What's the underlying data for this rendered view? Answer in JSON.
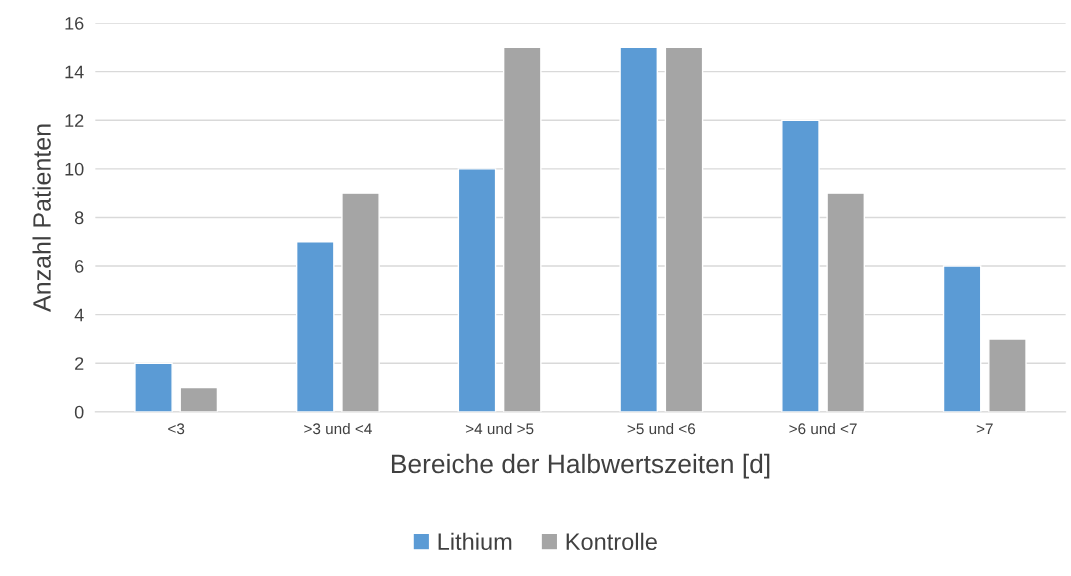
{
  "chart_data": {
    "type": "bar",
    "xlabel": "Bereiche der Halbwertszeiten [d]",
    "ylabel": "Anzahl Patienten",
    "categories": [
      "<3",
      ">3 und <4",
      ">4 und >5",
      ">5 und <6",
      ">6 und <7",
      ">7"
    ],
    "series": [
      {
        "name": "Lithium",
        "color": "#5b9bd5",
        "values": [
          2,
          7,
          10,
          15,
          12,
          6
        ]
      },
      {
        "name": "Kontrolle",
        "color": "#a5a5a5",
        "values": [
          1,
          9,
          15,
          15,
          9,
          3
        ]
      }
    ],
    "ylim": [
      0,
      16
    ],
    "yticks": [
      0,
      2,
      4,
      6,
      8,
      10,
      12,
      14,
      16
    ],
    "grid": "y",
    "legend": "bottom"
  }
}
